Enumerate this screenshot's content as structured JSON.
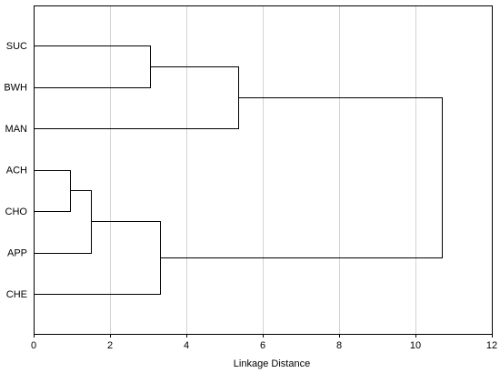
{
  "chart_data": {
    "type": "dendrogram",
    "orientation": "horizontal",
    "title": "",
    "xlabel": "Linkage Distance",
    "ylabel": "",
    "xlim": [
      0,
      12
    ],
    "x_ticks": [
      0,
      2,
      4,
      6,
      8,
      10,
      12
    ],
    "grid": true,
    "leaves": [
      "SUC",
      "BWH",
      "MAN",
      "ACH",
      "CHO",
      "APP",
      "CHE"
    ],
    "merges": [
      {
        "left": "ACH",
        "right": "CHO",
        "distance": 0.95
      },
      {
        "left": "ACH+CHO",
        "right": "APP",
        "distance": 1.5
      },
      {
        "left": "SUC",
        "right": "BWH",
        "distance": 3.05
      },
      {
        "left": "ACH+CHO+APP",
        "right": "CHE",
        "distance": 3.3
      },
      {
        "left": "SUC+BWH",
        "right": "MAN",
        "distance": 5.35
      },
      {
        "left": "SUC+BWH+MAN",
        "right": "ACH+CHO+APP+CHE",
        "distance": 10.7
      }
    ],
    "colors": {
      "line": "#000000",
      "grid": "#d3d3d3",
      "background": "#ffffff"
    }
  }
}
